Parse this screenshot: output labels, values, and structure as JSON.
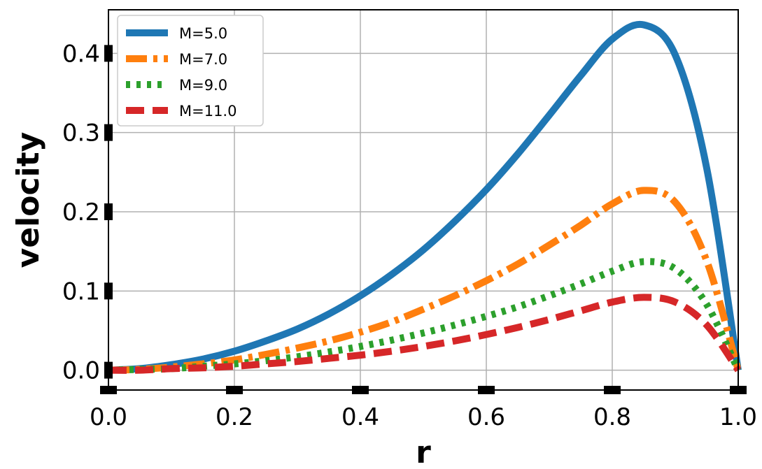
{
  "chart_data": {
    "type": "line",
    "xlabel": "r",
    "ylabel": "velocity",
    "xlim": [
      0.0,
      1.0
    ],
    "ylim": [
      -0.025,
      0.455
    ],
    "xticks": [
      0.0,
      0.2,
      0.4,
      0.6,
      0.8,
      1.0
    ],
    "xtick_labels": [
      "0.0",
      "0.2",
      "0.4",
      "0.6",
      "0.8",
      "1.0"
    ],
    "yticks": [
      0.0,
      0.1,
      0.2,
      0.3,
      0.4
    ],
    "ytick_labels": [
      "0.0",
      "0.1",
      "0.2",
      "0.3",
      "0.4"
    ],
    "grid": true,
    "legend_position": "top-left",
    "x": [
      0.0,
      0.05,
      0.1,
      0.15,
      0.2,
      0.25,
      0.3,
      0.35,
      0.4,
      0.45,
      0.5,
      0.55,
      0.6,
      0.65,
      0.7,
      0.75,
      0.8,
      0.85,
      0.9,
      0.95,
      1.0
    ],
    "series": [
      {
        "name": "M=5.0",
        "color": "#1f77b4",
        "style": "solid",
        "values": [
          0.0,
          0.002,
          0.007,
          0.014,
          0.024,
          0.037,
          0.052,
          0.071,
          0.094,
          0.121,
          0.152,
          0.188,
          0.228,
          0.273,
          0.322,
          0.372,
          0.418,
          0.436,
          0.398,
          0.255,
          0.0
        ]
      },
      {
        "name": "M=7.0",
        "color": "#ff7f0e",
        "style": "dashdot",
        "values": [
          0.0,
          0.001,
          0.004,
          0.008,
          0.013,
          0.02,
          0.028,
          0.037,
          0.048,
          0.061,
          0.077,
          0.094,
          0.113,
          0.134,
          0.158,
          0.183,
          0.21,
          0.227,
          0.212,
          0.138,
          0.0
        ]
      },
      {
        "name": "M=9.0",
        "color": "#2ca02c",
        "style": "dotted",
        "values": [
          0.0,
          0.001,
          0.002,
          0.005,
          0.008,
          0.012,
          0.017,
          0.023,
          0.03,
          0.038,
          0.047,
          0.057,
          0.068,
          0.08,
          0.094,
          0.109,
          0.125,
          0.137,
          0.128,
          0.083,
          0.0
        ]
      },
      {
        "name": "M=11.0",
        "color": "#d62728",
        "style": "dashed",
        "values": [
          0.0,
          0.0,
          0.002,
          0.003,
          0.005,
          0.008,
          0.011,
          0.015,
          0.019,
          0.024,
          0.03,
          0.037,
          0.045,
          0.054,
          0.064,
          0.075,
          0.086,
          0.092,
          0.086,
          0.057,
          0.0
        ]
      }
    ]
  }
}
